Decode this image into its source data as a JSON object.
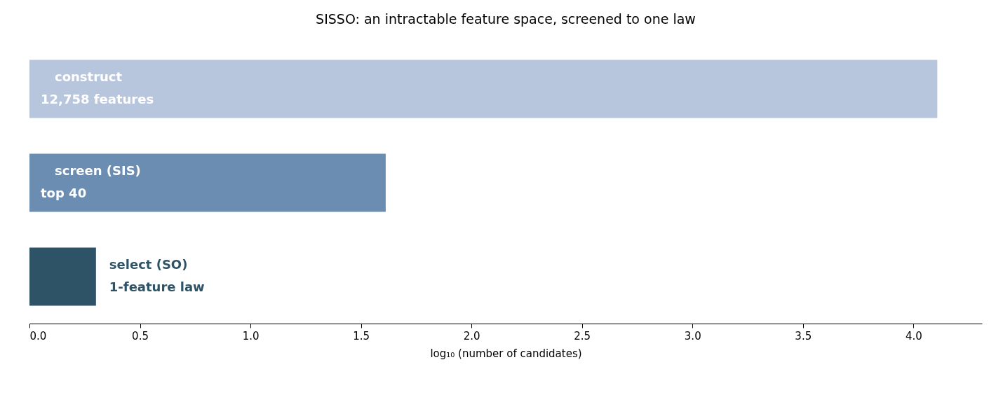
{
  "chart_data": {
    "type": "bar",
    "orientation": "horizontal",
    "title": "SISSO: an intractable feature space, screened to one law",
    "xlabel": "log₁₀ (number of candidates)",
    "categories": [
      "construct",
      "screen (SIS)",
      "select (SO)"
    ],
    "values": [
      4.108,
      1.612,
      0.301
    ],
    "colors": [
      "#b7c6dc",
      "#6b8db2",
      "#2e5366"
    ],
    "annotations": [
      "12,758 features",
      "top 40",
      "1-feature law"
    ],
    "xlim": [
      0,
      4.31
    ],
    "xticks": [
      {
        "value": 0,
        "label": "0.0"
      },
      {
        "value": 0.5,
        "label": "0.5"
      },
      {
        "value": 1,
        "label": "1.0"
      },
      {
        "value": 1.5,
        "label": "1.5"
      },
      {
        "value": 2,
        "label": "2.0"
      },
      {
        "value": 2.5,
        "label": "2.5"
      },
      {
        "value": 3,
        "label": "3.0"
      },
      {
        "value": 3.5,
        "label": "3.5"
      },
      {
        "value": 4,
        "label": "4.0"
      }
    ],
    "tick_labels": "x",
    "grid": false
  }
}
